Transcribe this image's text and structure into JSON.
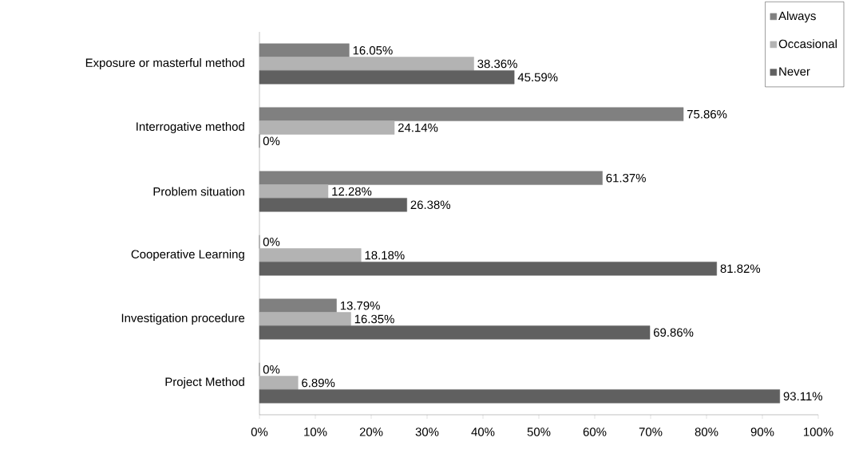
{
  "chart_data": {
    "type": "bar",
    "orientation": "horizontal",
    "categories": [
      "Exposure or masterful method",
      "Interrogative method",
      "Problem situation",
      "Cooperative Learning",
      "Investigation procedure",
      "Project  Method"
    ],
    "series": [
      {
        "name": "Always",
        "color": "#808080",
        "values": [
          16.05,
          75.86,
          61.37,
          0,
          13.79,
          0
        ],
        "value_labels": [
          "16.05%",
          "75.86%",
          "61.37%",
          "0%",
          "13.79%",
          "0%"
        ]
      },
      {
        "name": "Occasional",
        "color": "#b3b3b3",
        "values": [
          38.36,
          24.14,
          12.28,
          18.18,
          16.35,
          6.89
        ],
        "value_labels": [
          "38.36%",
          "24.14%",
          "12.28%",
          "18.18%",
          "16.35%",
          "6.89%"
        ]
      },
      {
        "name": "Never",
        "color": "#606060",
        "values": [
          45.59,
          0,
          26.38,
          81.82,
          69.86,
          93.11
        ],
        "value_labels": [
          "45.59%",
          "0%",
          "26.38%",
          "81.82%",
          "69.86%",
          "93.11%"
        ]
      }
    ],
    "xlim": [
      0,
      100
    ],
    "xticks": [
      {
        "value": 0,
        "label": "0%"
      },
      {
        "value": 10,
        "label": "10%"
      },
      {
        "value": 20,
        "label": "20%"
      },
      {
        "value": 30,
        "label": "30%"
      },
      {
        "value": 40,
        "label": "40%"
      },
      {
        "value": 50,
        "label": "50%"
      },
      {
        "value": 60,
        "label": "60%"
      },
      {
        "value": 70,
        "label": "70%"
      },
      {
        "value": 80,
        "label": "80%"
      },
      {
        "value": 90,
        "label": "90%"
      },
      {
        "value": 100,
        "label": "100%"
      }
    ],
    "legend": "top right"
  }
}
